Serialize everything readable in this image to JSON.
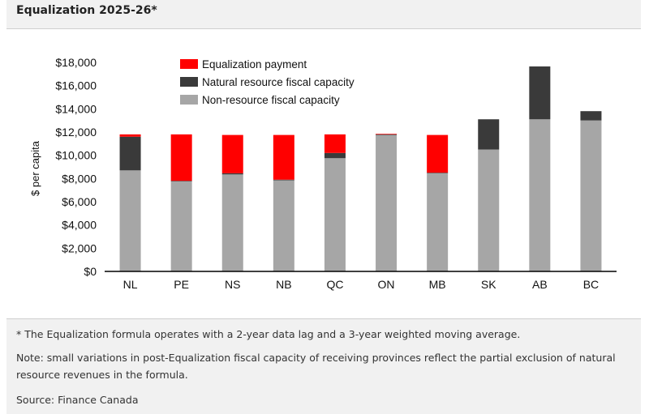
{
  "header": {
    "title": "Equalization 2025-26*"
  },
  "chart_data": {
    "type": "bar",
    "stacked": true,
    "title": "",
    "xlabel": "",
    "ylabel": "$ per capita",
    "ylim": [
      0,
      18000
    ],
    "yticks": [
      0,
      2000,
      4000,
      6000,
      8000,
      10000,
      12000,
      14000,
      16000,
      18000
    ],
    "ytick_labels": [
      "$0",
      "$2,000",
      "$4,000",
      "$6,000",
      "$8,000",
      "$10,000",
      "$12,000",
      "$14,000",
      "$16,000",
      "$18,000"
    ],
    "grid": false,
    "legend_position": "top-center",
    "categories": [
      "NL",
      "PE",
      "NS",
      "NB",
      "QC",
      "ON",
      "MB",
      "SK",
      "AB",
      "BC"
    ],
    "series": [
      {
        "name": "Non-resource fiscal capacity",
        "color": "#a6a6a6",
        "values": [
          8700,
          7750,
          8350,
          7850,
          9750,
          11750,
          8450,
          10500,
          13100,
          13000
        ]
      },
      {
        "name": "Natural resource fiscal capacity",
        "color": "#3a3a3a",
        "values": [
          2900,
          50,
          100,
          50,
          450,
          50,
          50,
          2600,
          4550,
          800
        ]
      },
      {
        "name": "Equalization payment",
        "color": "#ff0000",
        "values": [
          200,
          4000,
          3300,
          3850,
          1600,
          50,
          3250,
          0,
          0,
          0
        ]
      }
    ],
    "legend_order": [
      "Equalization payment",
      "Natural resource fiscal capacity",
      "Non-resource fiscal capacity"
    ]
  },
  "footer": {
    "footnote": "* The Equalization formula operates with a 2-year data lag and a 3-year weighted moving average.",
    "note": "Note: small variations in post-Equalization fiscal capacity of receiving provinces reflect the partial exclusion of natural resource revenues in the formula.",
    "source": "Source: Finance Canada"
  }
}
